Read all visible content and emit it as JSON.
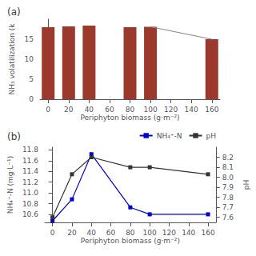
{
  "chart_data": [
    {
      "type": "bar",
      "title": "(a)",
      "xlabel": "Periphyton biomass (g·m⁻²)",
      "ylabel": "NH₃ volatilization (k",
      "xlim": [
        -8,
        168
      ],
      "xticks": [
        0,
        20,
        40,
        60,
        80,
        100,
        120,
        140,
        160
      ],
      "ylim": [
        0,
        20
      ],
      "yticks": [
        0,
        5,
        10,
        15
      ],
      "grid": false,
      "series": [
        {
          "type": "bar",
          "color": "#9B3A2C",
          "x": [
            0,
            20,
            40,
            80,
            100,
            160
          ],
          "values": [
            18.0,
            18.2,
            18.4,
            18.0,
            18.1,
            15.0
          ]
        },
        {
          "type": "line",
          "color": "#888888",
          "marker": "none",
          "x": [
            100,
            160
          ],
          "values": [
            18.1,
            15.0
          ]
        }
      ]
    },
    {
      "type": "line",
      "title": "(b)",
      "xlabel": "Periphyton biomass (g·m⁻²)",
      "ylabel": "NH₄⁺-N (mg·L⁻¹)",
      "y2label": "pH",
      "x": [
        0,
        20,
        40,
        80,
        100,
        160
      ],
      "xlim": [
        -8,
        168
      ],
      "xticks": [
        0,
        20,
        40,
        60,
        80,
        100,
        120,
        140,
        160
      ],
      "ylim": [
        10.45,
        11.85
      ],
      "yticks": [
        10.6,
        10.8,
        {
          "value": 11,
          "label": "11.0"
        },
        11.2,
        11.4,
        11.6,
        11.8
      ],
      "y2lim": [
        7.55,
        8.3
      ],
      "y2ticks": [
        7.6,
        7.7,
        7.8,
        7.9,
        {
          "value": 8,
          "label": "8.0"
        },
        8.1,
        8.2
      ],
      "grid": false,
      "legend": "upper right",
      "series": [
        {
          "name": "NH₄⁺-N",
          "color": "#0000CC",
          "marker": "square",
          "values": [
            10.48,
            10.88,
            11.72,
            10.73,
            10.6,
            10.6
          ]
        },
        {
          "name": "pH",
          "color": "#333333",
          "marker": "square",
          "axis": "y2",
          "values": [
            7.6,
            8.03,
            8.2,
            8.1,
            8.1,
            8.03
          ]
        }
      ]
    }
  ]
}
